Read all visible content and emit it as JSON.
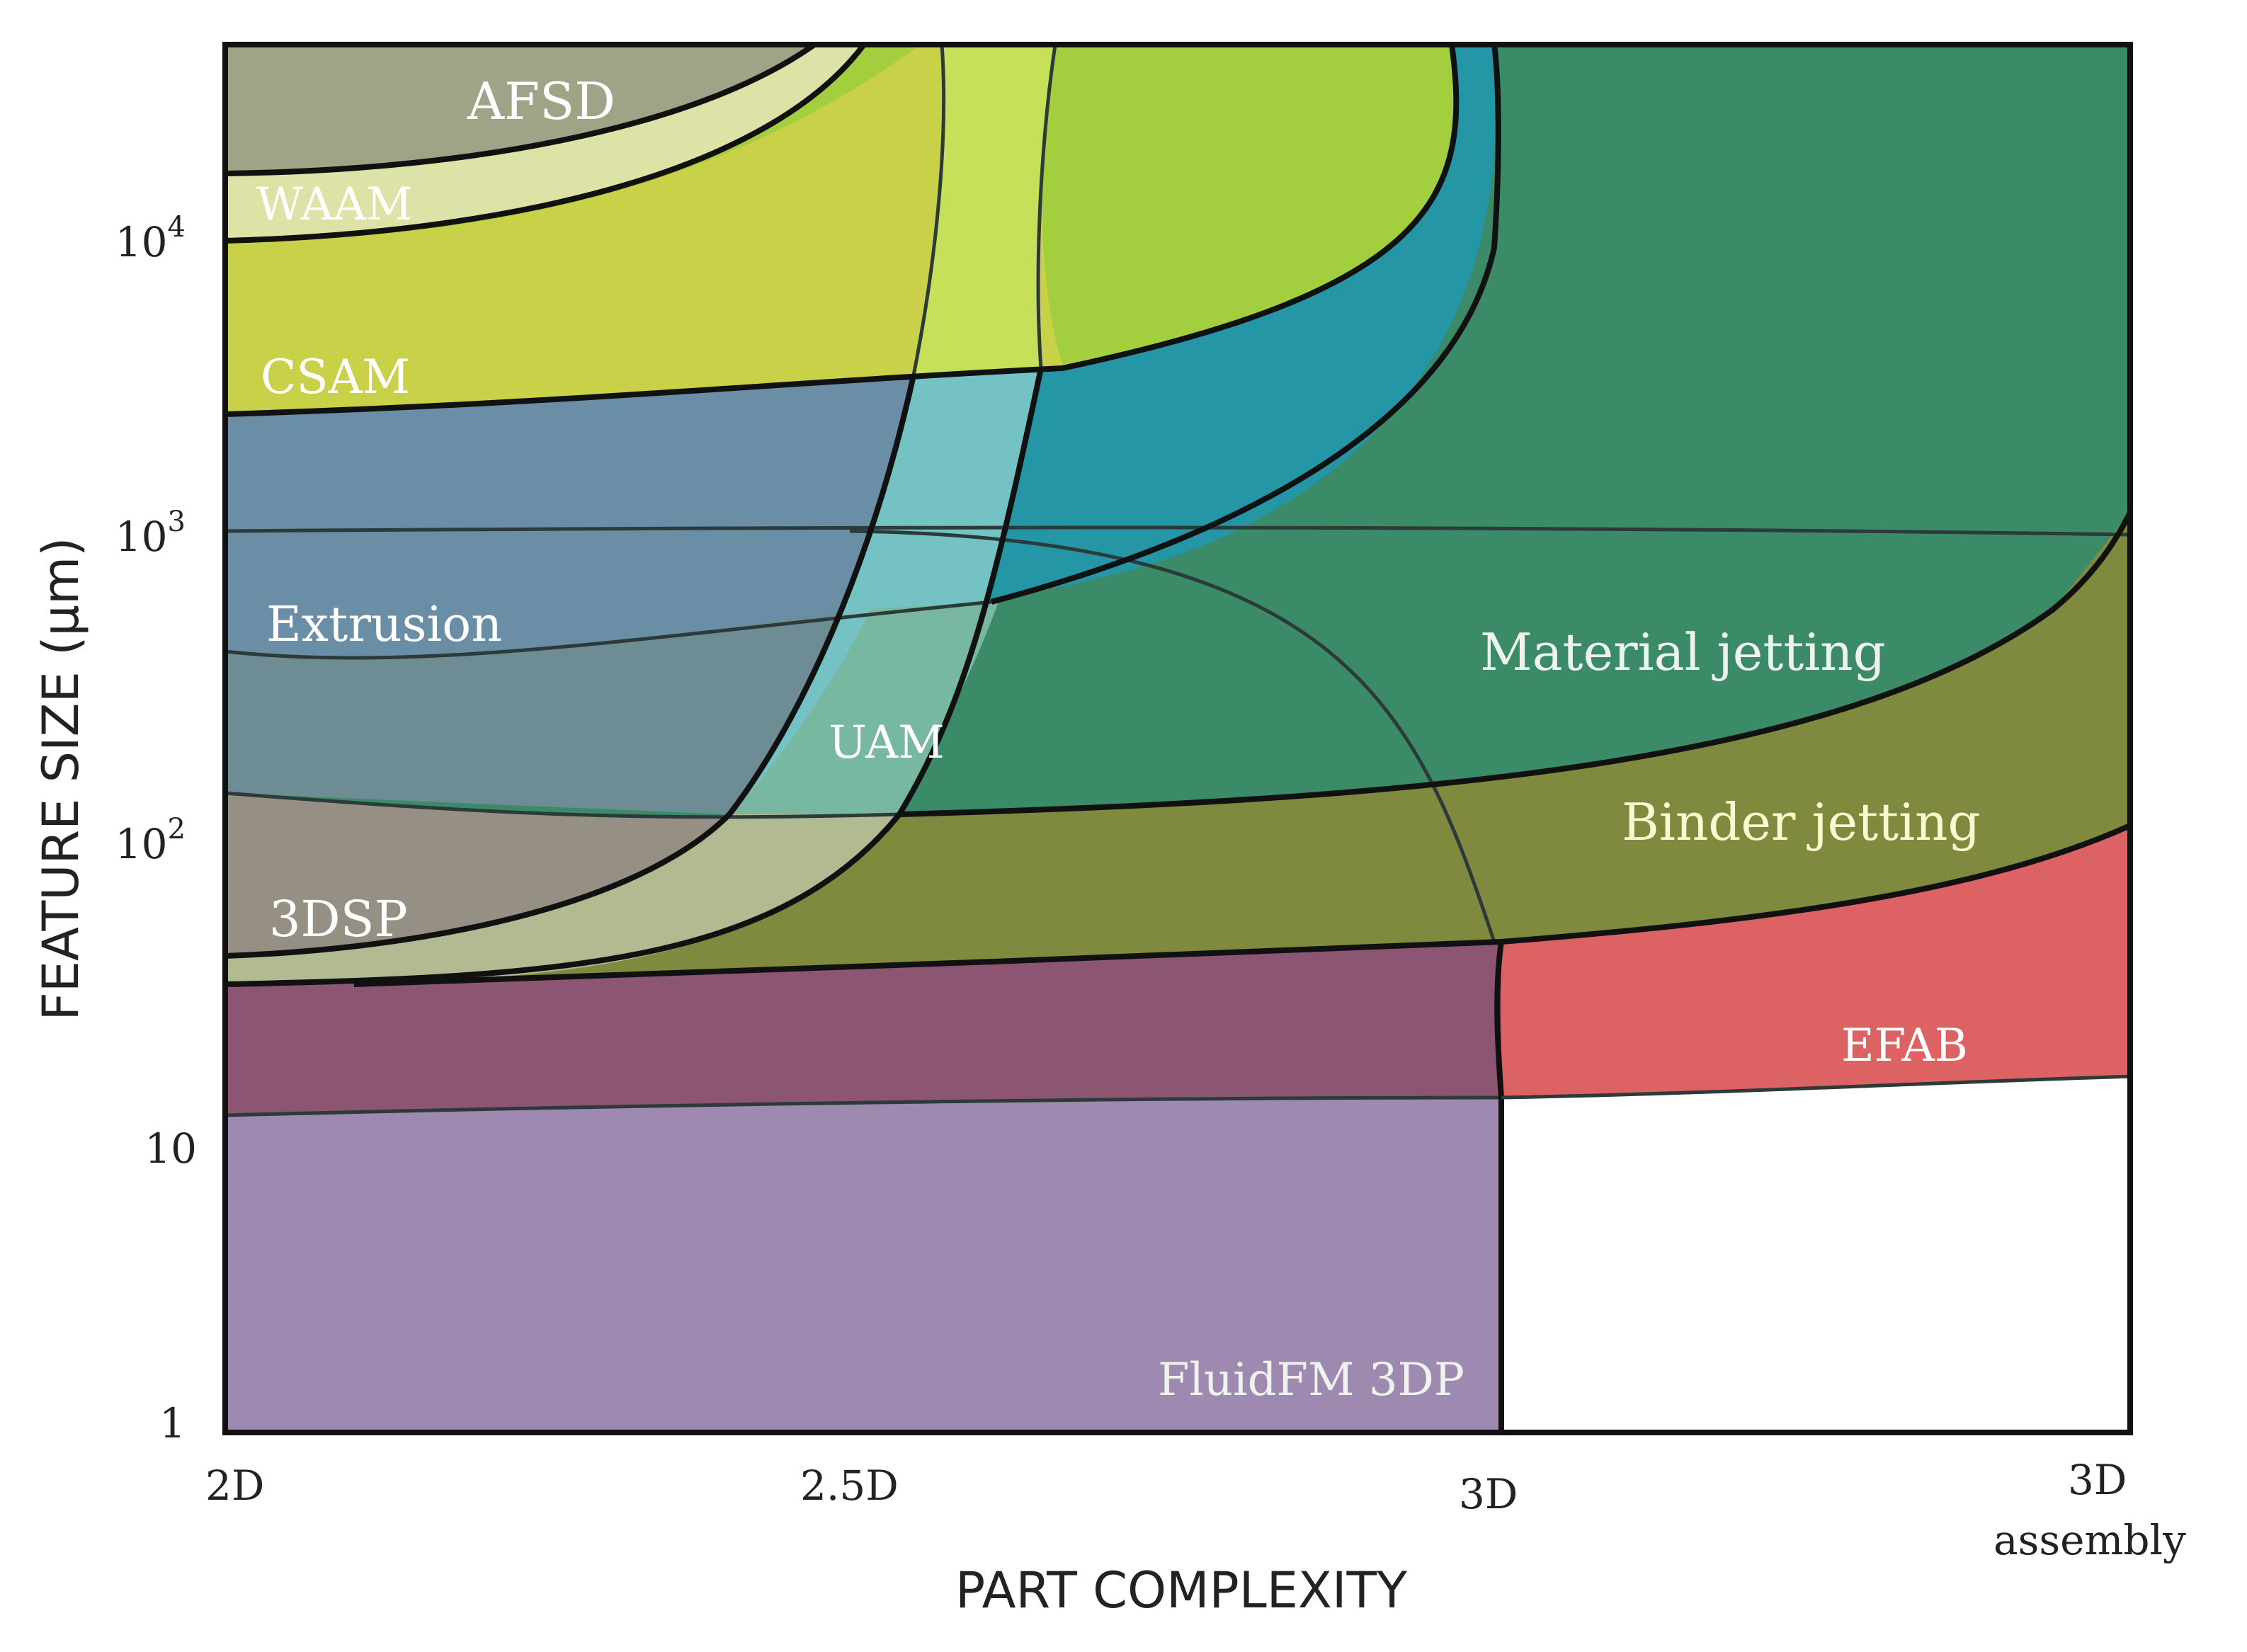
{
  "chart_data": {
    "type": "area",
    "title": "",
    "xlabel": "PART COMPLEXITY",
    "ylabel": "FEATURE SIZE (μm)",
    "x_ticks": [
      {
        "value": 0,
        "label": "2D",
        "sub": ""
      },
      {
        "value": 1,
        "label": "2.5D",
        "sub": ""
      },
      {
        "value": 2,
        "label": "3D",
        "sub": ""
      },
      {
        "value": 3,
        "label": "3D",
        "sub": "assembly"
      }
    ],
    "y_scale": "log",
    "y_ticks": [
      {
        "value": 1,
        "label": "1",
        "sup": ""
      },
      {
        "value": 10,
        "label": "10",
        "sup": ""
      },
      {
        "value": 100,
        "label": "10",
        "sup": "2"
      },
      {
        "value": 1000,
        "label": "10",
        "sup": "3"
      },
      {
        "value": 10000,
        "label": "10",
        "sup": "4"
      }
    ],
    "regions": [
      {
        "name": "AFSD",
        "color": "#a0a386"
      },
      {
        "name": "WAAM",
        "color": "#dde3a6"
      },
      {
        "name": "CSAM",
        "color": "#c9d148"
      },
      {
        "name": "Extrusion",
        "color": "#6a8ea6"
      },
      {
        "name": "3DSP",
        "color": "#968f84"
      },
      {
        "name": "UAM",
        "color": "#74c2c4"
      },
      {
        "name": "Material jetting",
        "color": "#3b8a68"
      },
      {
        "name": "Binder jetting",
        "color": "#7f8a3e"
      },
      {
        "name": "EFAB",
        "color": "#dc6264"
      },
      {
        "name": "FluidFM 3DP",
        "color": "#9e8ab0"
      }
    ],
    "colors": {
      "afsd": "#a0a386",
      "waam": "#dde3a6",
      "csam": "#c9d148",
      "csam_light": "#a3cf3e",
      "uam_top": "#c6e05a",
      "cyan_band": "#2596a6",
      "extrusion": "#6a8ea6",
      "extrusion_low": "#6e8c93",
      "threedsp": "#968f84",
      "threedsp_light": "#b2ba92",
      "uam": "#74c2c4",
      "uam_mid": "#78b8a0",
      "material_jetting": "#3b8a68",
      "binder_jetting": "#7f8a3e",
      "efab": "#dc6264",
      "purple_band": "#8c5572",
      "fluidfm": "#9e8ab0"
    }
  }
}
